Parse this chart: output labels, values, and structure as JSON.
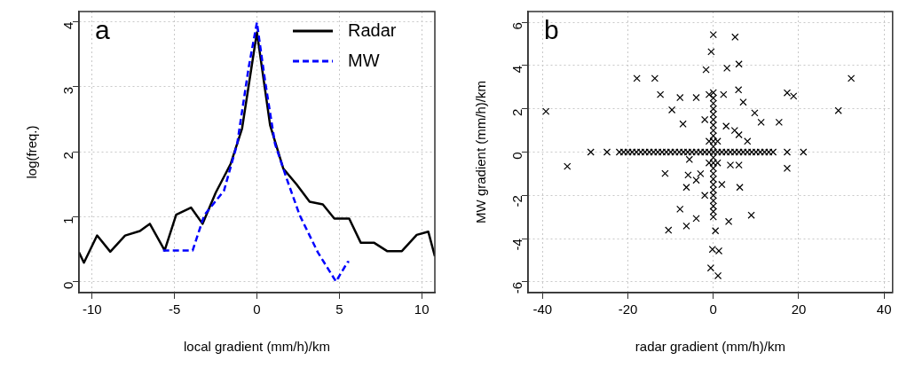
{
  "chart_data": [
    {
      "type": "line",
      "xlabel": "local gradient (mm/h)/km",
      "ylabel": "log(freq.)",
      "annotations": [
        "a"
      ],
      "xlim": [
        -10.8,
        10.8
      ],
      "ylim": [
        -0.17,
        4.16
      ],
      "xticks": [
        -10,
        -5,
        0,
        5,
        10
      ],
      "yticks": [
        0,
        1,
        2,
        3,
        4
      ],
      "grid": true,
      "legend": "top right",
      "marker": "none",
      "series": [
        {
          "name": "Radar",
          "color": "#000000",
          "line_style": "solid",
          "x": [
            -10.8,
            -10.5,
            -9.7,
            -8.9,
            -8.0,
            -7.1,
            -6.5,
            -5.6,
            -4.9,
            -4.0,
            -3.3,
            -2.5,
            -1.6,
            -0.9,
            0,
            0.8,
            1.6,
            2.4,
            3.2,
            4.0,
            4.7,
            5.6,
            6.3,
            7.1,
            7.9,
            8.8,
            9.7,
            10.4,
            10.8
          ],
          "values": [
            0.45,
            0.29,
            0.71,
            0.46,
            0.71,
            0.78,
            0.89,
            0.48,
            1.03,
            1.14,
            0.89,
            1.37,
            1.81,
            2.36,
            3.84,
            2.41,
            1.74,
            1.5,
            1.23,
            1.19,
            0.97,
            0.97,
            0.6,
            0.6,
            0.47,
            0.47,
            0.72,
            0.77,
            0.39
          ]
        },
        {
          "name": "MW",
          "color": "#0000ff",
          "line_style": "dashed",
          "x": [
            -5.7,
            -3.9,
            -3.2,
            -2.0,
            -1.2,
            -0.5,
            0,
            0.5,
            1.1,
            1.8,
            2.6,
            3.7,
            4.8,
            5.5,
            5.6
          ],
          "values": [
            0.48,
            0.48,
            1.02,
            1.4,
            2.12,
            3.3,
            3.99,
            3.08,
            2.12,
            1.59,
            1.02,
            0.45,
            0,
            0.3,
            0.3
          ]
        }
      ]
    },
    {
      "type": "scatter",
      "xlabel": "radar gradient (mm/h)/km",
      "ylabel": "MW gradient (mm/h)/km",
      "annotations": [
        "b"
      ],
      "xlim": [
        -43.4,
        42
      ],
      "ylim": [
        -6.5,
        6.5
      ],
      "xticks": [
        -40,
        -20,
        0,
        20,
        40
      ],
      "yticks": [
        -6,
        -4,
        -2,
        0,
        2,
        4,
        6
      ],
      "grid": true,
      "marker": "cross",
      "series": [
        {
          "color": "#000000",
          "x": [
            -39.2,
            -34.2,
            -28.7,
            -24.9,
            -17.9,
            -13.7,
            -12.4,
            -9.7,
            -7.8,
            -7.1,
            -4.0,
            -1.0,
            2.4,
            5.9,
            0,
            5.1,
            -0.5,
            -1.7,
            3.2,
            6.0,
            7.0,
            9.7,
            11.2,
            15.4,
            17.3,
            18.8,
            32.3,
            29.3,
            17.3,
            21.1,
            17.3,
            -11.3,
            -7.8,
            -10.5,
            -6.3,
            -4.0,
            3.6,
            8.9,
            6.2,
            0.5,
            -0.2,
            1.3,
            -0.6,
            1.1,
            -5.9,
            -6.3,
            -5.6,
            -22,
            -21,
            -20,
            -19,
            -18,
            -17,
            -16,
            -15,
            -14,
            -13,
            -12,
            -11,
            -10,
            -9,
            -8,
            -7,
            -6,
            -5,
            -4,
            -3,
            -2,
            -1,
            1,
            2,
            3,
            4,
            5,
            6,
            7,
            8,
            9,
            10,
            11,
            12,
            13,
            14,
            0,
            0,
            0,
            0,
            0,
            0,
            0,
            0,
            0,
            0,
            0,
            0,
            0,
            0,
            0,
            0,
            0,
            0,
            0,
            0,
            0,
            0,
            0,
            0,
            1,
            -1,
            1,
            -1,
            5,
            6,
            8,
            4,
            6,
            -3,
            -4,
            -2,
            3,
            2,
            -2
          ],
          "values": [
            1.88,
            -0.66,
            0,
            0,
            3.41,
            3.41,
            2.66,
            1.95,
            2.52,
            1.3,
            2.52,
            2.66,
            2.66,
            2.88,
            5.43,
            5.32,
            4.64,
            3.81,
            3.88,
            4.07,
            2.31,
            1.81,
            1.38,
            1.38,
            2.74,
            2.59,
            3.41,
            1.92,
            0,
            0,
            -0.75,
            -0.99,
            -2.64,
            -3.61,
            -3.42,
            -3.07,
            -3.21,
            -2.92,
            -1.63,
            -3.64,
            -4.5,
            -4.57,
            -5.36,
            -5.72,
            -1.06,
            -1.63,
            -0.34,
            0,
            0,
            0,
            0,
            0,
            0,
            0,
            0,
            0,
            0,
            0,
            0,
            0,
            0,
            0,
            0,
            0,
            0,
            0,
            0,
            0,
            0,
            0,
            0,
            0,
            0,
            0,
            0,
            0,
            0,
            0,
            0,
            0,
            0,
            0,
            0,
            -3,
            -2.75,
            -2.5,
            -2.25,
            -2,
            -1.75,
            -1.5,
            -1.25,
            -1,
            -0.75,
            -0.5,
            -0.25,
            0,
            0.25,
            0.5,
            0.75,
            1,
            1.25,
            1.5,
            1.75,
            2,
            2.25,
            2.5,
            2.75,
            0.5,
            0.5,
            -0.5,
            -0.5,
            1,
            0.8,
            0.5,
            -0.6,
            -0.6,
            -1,
            -1.3,
            1.5,
            1.2,
            -1.5,
            -2
          ]
        }
      ]
    }
  ]
}
